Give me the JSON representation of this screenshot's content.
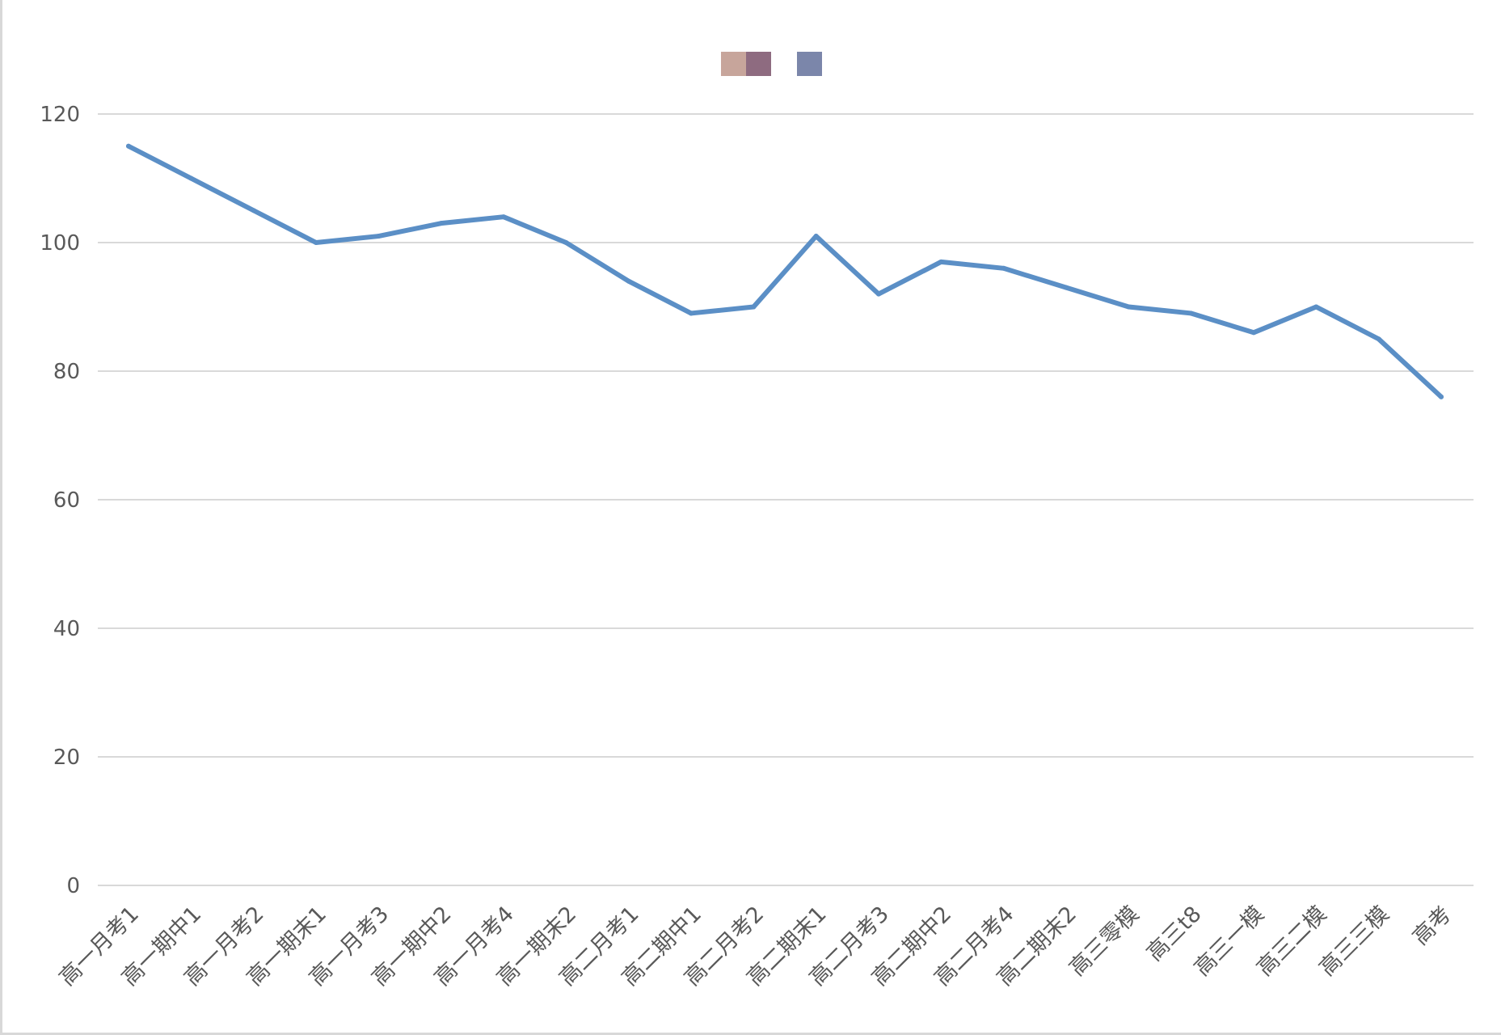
{
  "chart_data": {
    "type": "line",
    "categories": [
      "高一月考1",
      "高一期中1",
      "高一月考2",
      "高一期末1",
      "高一月考3",
      "高一期中2",
      "高一月考4",
      "高一期末2",
      "高二月考1",
      "高二期中1",
      "高二月考2",
      "高二期末1",
      "高二月考3",
      "高二期中2",
      "高二月考4",
      "高二期末2",
      "高三零模",
      "高三t8",
      "高三一模",
      "高三二模",
      "高三三模",
      "高考"
    ],
    "series": [
      {
        "values": [
          115,
          110,
          105,
          100,
          101,
          103,
          104,
          100,
          94,
          89,
          90,
          101,
          92,
          97,
          96,
          93,
          90,
          89,
          86,
          90,
          85,
          76
        ]
      }
    ],
    "ylim": [
      0,
      120
    ],
    "yticks": [
      0,
      20,
      40,
      60,
      80,
      100,
      120
    ],
    "grid": true,
    "legend_position": "top-center",
    "legend_swatches": [
      "#c7a59b",
      "#8e6b80",
      "#7b86aa"
    ],
    "line_color": "#5b8fc6",
    "grid_color": "#d9d9d9"
  }
}
